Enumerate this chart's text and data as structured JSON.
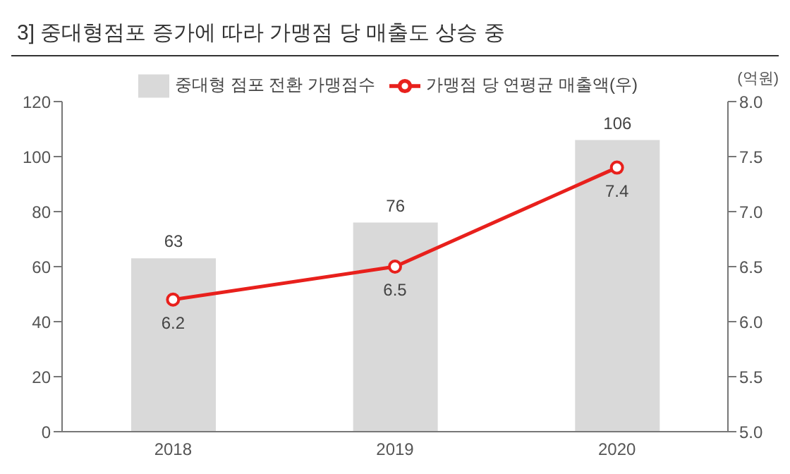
{
  "chart_data": {
    "type": "bar",
    "title": "3]   중대형점포 증가에 따라 가맹점 당 매출도 상승 중",
    "y2label": "(억원)",
    "categories": [
      "2018",
      "2019",
      "2020"
    ],
    "series": [
      {
        "name": "중대형 점포 전환 가맹점수",
        "color": "#d9d9d9",
        "values": [
          63,
          76,
          106
        ]
      },
      {
        "name": "가맹점 당 연평균 매출액(우)",
        "type": "line",
        "axis": "y2",
        "color": "#e8201c",
        "values": [
          6.2,
          6.5,
          7.4
        ]
      }
    ],
    "ylim": [
      0,
      120
    ],
    "yticks": [
      0,
      20,
      40,
      60,
      80,
      100,
      120
    ],
    "y2lim": [
      5,
      8
    ],
    "y2ticks": [
      {
        "value": 5,
        "label": "5.0"
      },
      {
        "value": 5.5,
        "label": "5.5"
      },
      {
        "value": 6,
        "label": "6.0"
      },
      {
        "value": 6.5,
        "label": "6.5"
      },
      {
        "value": 7,
        "label": "7.0"
      },
      {
        "value": 7.5,
        "label": "7.5"
      },
      {
        "value": 8,
        "label": "8.0"
      }
    ],
    "data_labels": true,
    "legend": "top",
    "marker": "circle"
  }
}
